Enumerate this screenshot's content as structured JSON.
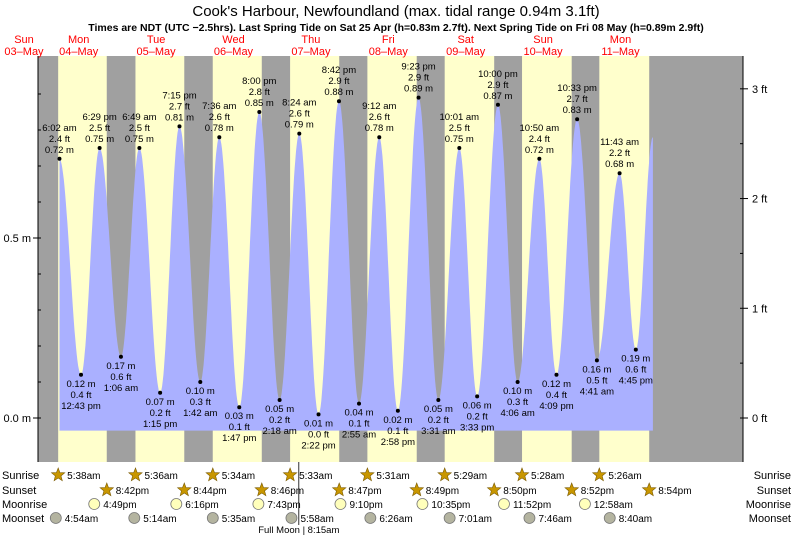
{
  "header": {
    "title": "Cook's Harbour, Newfoundland (max. tidal range 0.94m 3.1ft)",
    "subtitle": "Times are NDT (UTC −2.5hrs). Last Spring Tide on Sat 25 Apr (h=0.83m 2.7ft). Next Spring Tide on Fri 08 May (h=0.89m 2.9ft)"
  },
  "colors": {
    "day_bg": "#ffffcc",
    "night_bg": "#a0a0a0",
    "tide_fill": "#aab0ff",
    "date_text": "#ff0000",
    "text": "#000000",
    "sun_icon": "#c89600",
    "moon_icon": "#ffffbb",
    "moonset_icon": "#b4b4a0"
  },
  "chart_data": {
    "type": "area",
    "title": "Cook's Harbour, Newfoundland (max. tidal range 0.94m 3.1ft)",
    "xlim": [
      "2026-05-03 13:00",
      "2026-05-11 18:00"
    ],
    "ylim": [
      -0.11,
      1.03
    ],
    "y_left_ticks": [
      {
        "value": 0.0,
        "label": "0.0 m"
      },
      {
        "value": 0.5,
        "label": "0.5 m"
      }
    ],
    "y_right_ticks": [
      {
        "value": 0.0,
        "label": "0 ft"
      },
      {
        "value": 0.3048,
        "label": "1 ft"
      },
      {
        "value": 0.6096,
        "label": "2 ft"
      },
      {
        "value": 0.9144,
        "label": "3 ft"
      }
    ],
    "days": [
      {
        "dow": "Sun",
        "date": "03–May"
      },
      {
        "dow": "Mon",
        "date": "04–May"
      },
      {
        "dow": "Tue",
        "date": "05–May"
      },
      {
        "dow": "Wed",
        "date": "06–May"
      },
      {
        "dow": "Thu",
        "date": "07–May"
      },
      {
        "dow": "Fri",
        "date": "08–May"
      },
      {
        "dow": "Sat",
        "date": "09–May"
      },
      {
        "dow": "Sun",
        "date": "10–May"
      },
      {
        "dow": "Mon",
        "date": "11–May"
      }
    ],
    "tides": [
      {
        "date": "2026-05-04",
        "time": "6:02 am",
        "type": "high",
        "m": 0.72,
        "m_label": "0.72 m",
        "ft_label": "2.4 ft"
      },
      {
        "date": "2026-05-04",
        "time": "12:43 pm",
        "type": "low",
        "m": 0.12,
        "m_label": "0.12 m",
        "ft_label": "0.4 ft"
      },
      {
        "date": "2026-05-04",
        "time": "6:29 pm",
        "type": "high",
        "m": 0.75,
        "m_label": "0.75 m",
        "ft_label": "2.5 ft"
      },
      {
        "date": "2026-05-05",
        "time": "1:06 am",
        "type": "low",
        "m": 0.17,
        "m_label": "0.17 m",
        "ft_label": "0.6 ft"
      },
      {
        "date": "2026-05-05",
        "time": "6:49 am",
        "type": "high",
        "m": 0.75,
        "m_label": "0.75 m",
        "ft_label": "2.5 ft"
      },
      {
        "date": "2026-05-05",
        "time": "1:15 pm",
        "type": "low",
        "m": 0.07,
        "m_label": "0.07 m",
        "ft_label": "0.2 ft"
      },
      {
        "date": "2026-05-05",
        "time": "7:15 pm",
        "type": "high",
        "m": 0.81,
        "m_label": "0.81 m",
        "ft_label": "2.7 ft"
      },
      {
        "date": "2026-05-06",
        "time": "1:42 am",
        "type": "low",
        "m": 0.1,
        "m_label": "0.10 m",
        "ft_label": "0.3 ft"
      },
      {
        "date": "2026-05-06",
        "time": "7:36 am",
        "type": "high",
        "m": 0.78,
        "m_label": "0.78 m",
        "ft_label": "2.6 ft"
      },
      {
        "date": "2026-05-06",
        "time": "1:47 pm",
        "type": "low",
        "m": 0.03,
        "m_label": "0.03 m",
        "ft_label": "0.1 ft"
      },
      {
        "date": "2026-05-06",
        "time": "8:00 pm",
        "type": "high",
        "m": 0.85,
        "m_label": "0.85 m",
        "ft_label": "2.8 ft"
      },
      {
        "date": "2026-05-07",
        "time": "2:18 am",
        "type": "low",
        "m": 0.05,
        "m_label": "0.05 m",
        "ft_label": "0.2 ft"
      },
      {
        "date": "2026-05-07",
        "time": "8:24 am",
        "type": "high",
        "m": 0.79,
        "m_label": "0.79 m",
        "ft_label": "2.6 ft"
      },
      {
        "date": "2026-05-07",
        "time": "2:22 pm",
        "type": "low",
        "m": 0.01,
        "m_label": "0.01 m",
        "ft_label": "0.0 ft"
      },
      {
        "date": "2026-05-07",
        "time": "8:42 pm",
        "type": "high",
        "m": 0.88,
        "m_label": "0.88 m",
        "ft_label": "2.9 ft"
      },
      {
        "date": "2026-05-08",
        "time": "2:55 am",
        "type": "low",
        "m": 0.04,
        "m_label": "0.04 m",
        "ft_label": "0.1 ft"
      },
      {
        "date": "2026-05-08",
        "time": "9:12 am",
        "type": "high",
        "m": 0.78,
        "m_label": "0.78 m",
        "ft_label": "2.6 ft"
      },
      {
        "date": "2026-05-08",
        "time": "2:58 pm",
        "type": "low",
        "m": 0.02,
        "m_label": "0.02 m",
        "ft_label": "0.1 ft"
      },
      {
        "date": "2026-05-08",
        "time": "9:23 pm",
        "type": "high",
        "m": 0.89,
        "m_label": "0.89 m",
        "ft_label": "2.9 ft"
      },
      {
        "date": "2026-05-09",
        "time": "3:31 am",
        "type": "low",
        "m": 0.05,
        "m_label": "0.05 m",
        "ft_label": "0.2 ft"
      },
      {
        "date": "2026-05-09",
        "time": "10:01 am",
        "type": "high",
        "m": 0.75,
        "m_label": "0.75 m",
        "ft_label": "2.5 ft"
      },
      {
        "date": "2026-05-09",
        "time": "3:33 pm",
        "type": "low",
        "m": 0.06,
        "m_label": "0.06 m",
        "ft_label": "0.2 ft"
      },
      {
        "date": "2026-05-09",
        "time": "10:00 pm",
        "type": "high",
        "m": 0.87,
        "m_label": "0.87 m",
        "ft_label": "2.9 ft"
      },
      {
        "date": "2026-05-10",
        "time": "4:06 am",
        "type": "low",
        "m": 0.1,
        "m_label": "0.10 m",
        "ft_label": "0.3 ft"
      },
      {
        "date": "2026-05-10",
        "time": "10:50 am",
        "type": "high",
        "m": 0.72,
        "m_label": "0.72 m",
        "ft_label": "2.4 ft"
      },
      {
        "date": "2026-05-10",
        "time": "4:09 pm",
        "type": "low",
        "m": 0.12,
        "m_label": "0.12 m",
        "ft_label": "0.4 ft"
      },
      {
        "date": "2026-05-10",
        "time": "10:33 pm",
        "type": "high",
        "m": 0.83,
        "m_label": "0.83 m",
        "ft_label": "2.7 ft"
      },
      {
        "date": "2026-05-11",
        "time": "4:41 am",
        "type": "low",
        "m": 0.16,
        "m_label": "0.16 m",
        "ft_label": "0.5 ft"
      },
      {
        "date": "2026-05-11",
        "time": "11:43 am",
        "type": "high",
        "m": 0.68,
        "m_label": "0.68 m",
        "ft_label": "2.2 ft"
      },
      {
        "date": "2026-05-11",
        "time": "4:45 pm",
        "type": "low",
        "m": 0.19,
        "m_label": "0.19 m",
        "ft_label": "0.6 ft"
      }
    ],
    "sunrise": [
      {
        "date": "2026-05-04",
        "time": "5:38am"
      },
      {
        "date": "2026-05-05",
        "time": "5:36am"
      },
      {
        "date": "2026-05-06",
        "time": "5:34am"
      },
      {
        "date": "2026-05-07",
        "time": "5:33am"
      },
      {
        "date": "2026-05-08",
        "time": "5:31am"
      },
      {
        "date": "2026-05-09",
        "time": "5:29am"
      },
      {
        "date": "2026-05-10",
        "time": "5:28am"
      },
      {
        "date": "2026-05-11",
        "time": "5:26am"
      }
    ],
    "sunset": [
      {
        "date": "2026-05-04",
        "time": "8:42pm"
      },
      {
        "date": "2026-05-05",
        "time": "8:44pm"
      },
      {
        "date": "2026-05-06",
        "time": "8:46pm"
      },
      {
        "date": "2026-05-07",
        "time": "8:47pm"
      },
      {
        "date": "2026-05-08",
        "time": "8:49pm"
      },
      {
        "date": "2026-05-09",
        "time": "8:50pm"
      },
      {
        "date": "2026-05-10",
        "time": "8:52pm"
      },
      {
        "date": "2026-05-11",
        "time": "8:54pm"
      }
    ],
    "moonrise": [
      {
        "date": "2026-05-04",
        "time": "4:49pm"
      },
      {
        "date": "2026-05-05",
        "time": "6:16pm"
      },
      {
        "date": "2026-05-06",
        "time": "7:43pm"
      },
      {
        "date": "2026-05-07",
        "time": "9:10pm"
      },
      {
        "date": "2026-05-08",
        "time": "10:35pm"
      },
      {
        "date": "2026-05-09",
        "time": "11:52pm"
      },
      {
        "date": "2026-05-11",
        "time": "12:58am"
      }
    ],
    "moonset": [
      {
        "date": "2026-05-04",
        "time": "4:54am"
      },
      {
        "date": "2026-05-05",
        "time": "5:14am"
      },
      {
        "date": "2026-05-06",
        "time": "5:35am"
      },
      {
        "date": "2026-05-07",
        "time": "5:58am"
      },
      {
        "date": "2026-05-08",
        "time": "6:26am"
      },
      {
        "date": "2026-05-09",
        "time": "7:01am"
      },
      {
        "date": "2026-05-10",
        "time": "7:46am"
      },
      {
        "date": "2026-05-11",
        "time": "8:40am"
      }
    ],
    "full_moon": {
      "date": "2026-05-07",
      "time": "8:15am",
      "label": "Full Moon | 8:15am"
    }
  },
  "row_labels": {
    "sunrise": "Sunrise",
    "sunset": "Sunset",
    "moonrise": "Moonrise",
    "moonset": "Moonset"
  }
}
